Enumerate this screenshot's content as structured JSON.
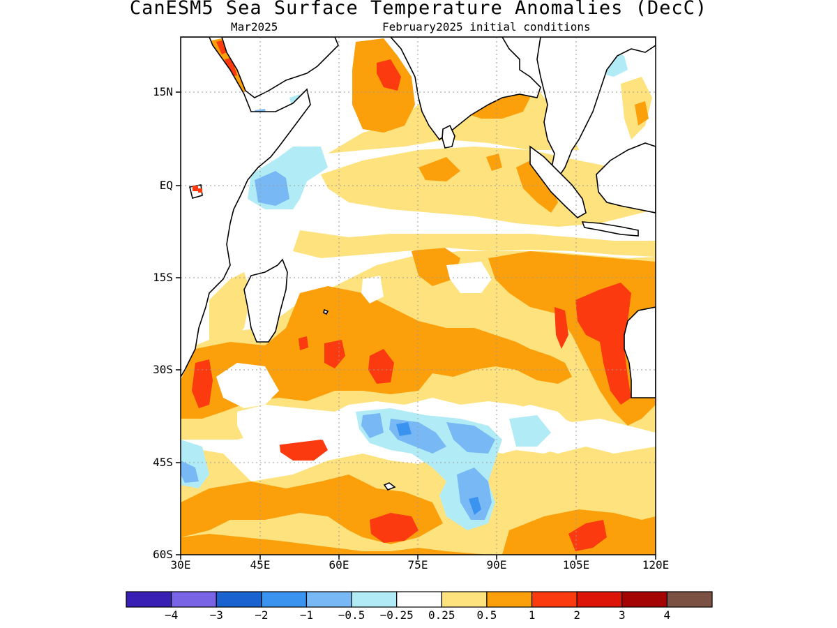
{
  "header": {
    "title": "CanESM5 Sea Surface Temperature Anomalies (DecC)",
    "valid_month": "Mar2025",
    "init_conditions": "February2025 initial conditions"
  },
  "map": {
    "region": "Indian Ocean",
    "lon_range": [
      30,
      120
    ],
    "lat_range": [
      -60,
      24
    ],
    "gridlines": "dotted",
    "lat_labels": [
      "15N",
      "EQ",
      "15S",
      "30S",
      "45S",
      "60S"
    ],
    "lon_labels": [
      "30E",
      "45E",
      "60E",
      "75E",
      "90E",
      "105E",
      "120E"
    ],
    "land_color": "#ffffff",
    "coastline_color": "#000000"
  },
  "legend": {
    "colors": [
      "#3a1fb5",
      "#7a64e6",
      "#1962d0",
      "#3b93f0",
      "#77b8f5",
      "#b1ecf6",
      "#ffffff",
      "#fde27e",
      "#fb9f0b",
      "#fb3a0f",
      "#dd1508",
      "#a40404",
      "#7a5142"
    ],
    "labels": [
      "−4",
      "−3",
      "−2",
      "−1",
      "−0.5",
      "−0.25",
      "0.25",
      "0.5",
      "1",
      "2",
      "3",
      "4"
    ]
  }
}
